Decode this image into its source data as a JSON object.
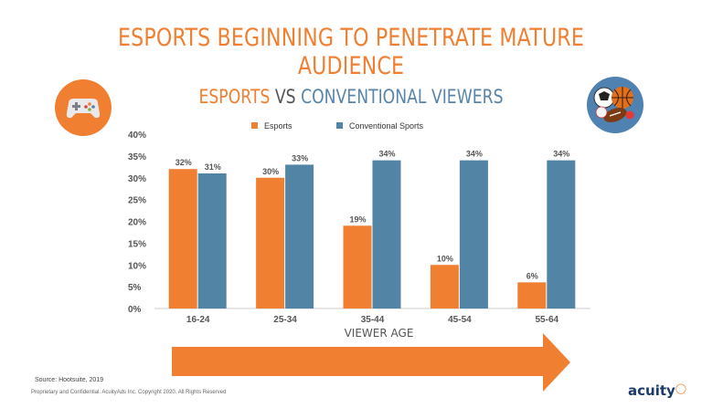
{
  "header": {
    "title": "ESPORTS BEGINNING TO PENETRATE MATURE AUDIENCE"
  },
  "chart_heading": {
    "part1": "ESPORTS",
    "part2": " VS ",
    "part3": "CONVENTIONAL VIEWERS"
  },
  "icons": {
    "left": "gamepad-icon",
    "right": "sports-balls-icon"
  },
  "colors": {
    "orange": "#f07f32",
    "blue": "#5284a6",
    "title_blue": "#5885a9",
    "dark_gray": "#555555"
  },
  "chart_data": {
    "type": "bar",
    "categories": [
      "16-24",
      "25-34",
      "35-44",
      "45-54",
      "55-64"
    ],
    "series": [
      {
        "name": "Esports",
        "values": [
          32,
          30,
          19,
          10,
          6
        ]
      },
      {
        "name": "Conventional Sports",
        "values": [
          31,
          33,
          34,
          34,
          34
        ]
      }
    ],
    "value_labels": [
      [
        "32%",
        "30%",
        "19%",
        "10%",
        "6%"
      ],
      [
        "31%",
        "33%",
        "34%",
        "34%",
        "34%"
      ]
    ],
    "y_ticks": [
      "0%",
      "5%",
      "10%",
      "15%",
      "20%",
      "25%",
      "30%",
      "35%",
      "40%"
    ],
    "ylim": [
      0,
      40
    ],
    "xlabel": "VIEWER AGE",
    "ylabel": "",
    "legend_position": "top-center",
    "grid": false
  },
  "footer": {
    "source": "Source: Hootsuite, 2019",
    "legal": "Proprietary and Confidential.  AcuityAds Inc. Copyright 2020.  All Rights Reserved",
    "brand": "acuity"
  }
}
